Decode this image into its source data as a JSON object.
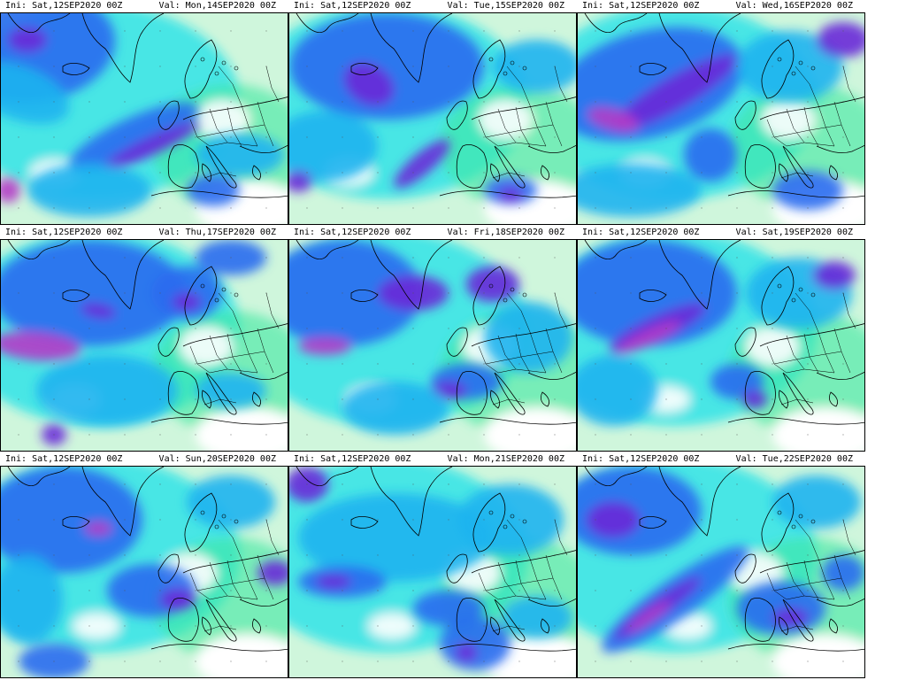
{
  "panels": [
    {
      "ini": "Ini: Sat,12SEP2020 00Z",
      "valid": "Val: Mon,14SEP2020 00Z"
    },
    {
      "ini": "Ini: Sat,12SEP2020 00Z",
      "valid": "Val: Tue,15SEP2020 00Z"
    },
    {
      "ini": "Ini: Sat,12SEP2020 00Z",
      "valid": "Val: Wed,16SEP2020 00Z"
    },
    {
      "ini": "Ini: Sat,12SEP2020 00Z",
      "valid": "Val: Thu,17SEP2020 00Z"
    },
    {
      "ini": "Ini: Sat,12SEP2020 00Z",
      "valid": "Val: Fri,18SEP2020 00Z"
    },
    {
      "ini": "Ini: Sat,12SEP2020 00Z",
      "valid": "Val: Sat,19SEP2020 00Z"
    },
    {
      "ini": "Ini: Sat,12SEP2020 00Z",
      "valid": "Val: Sun,20SEP2020 00Z"
    },
    {
      "ini": "Ini: Sat,12SEP2020 00Z",
      "valid": "Val: Mon,21SEP2020 00Z"
    },
    {
      "ini": "Ini: Sat,12SEP2020 00Z",
      "valid": "Val: Tue,22SEP2020 00Z"
    }
  ],
  "colors": {
    "background": "#ffffff",
    "light_green": "#a8f0c0",
    "green": "#3ee8a0",
    "cyan": "#1ee0e8",
    "light_blue": "#1eb4f0",
    "blue": "#2a6cf0",
    "deep_blue": "#2a3cd8",
    "purple": "#6a28d8",
    "magenta": "#b43cc8",
    "coastline": "#000000"
  }
}
